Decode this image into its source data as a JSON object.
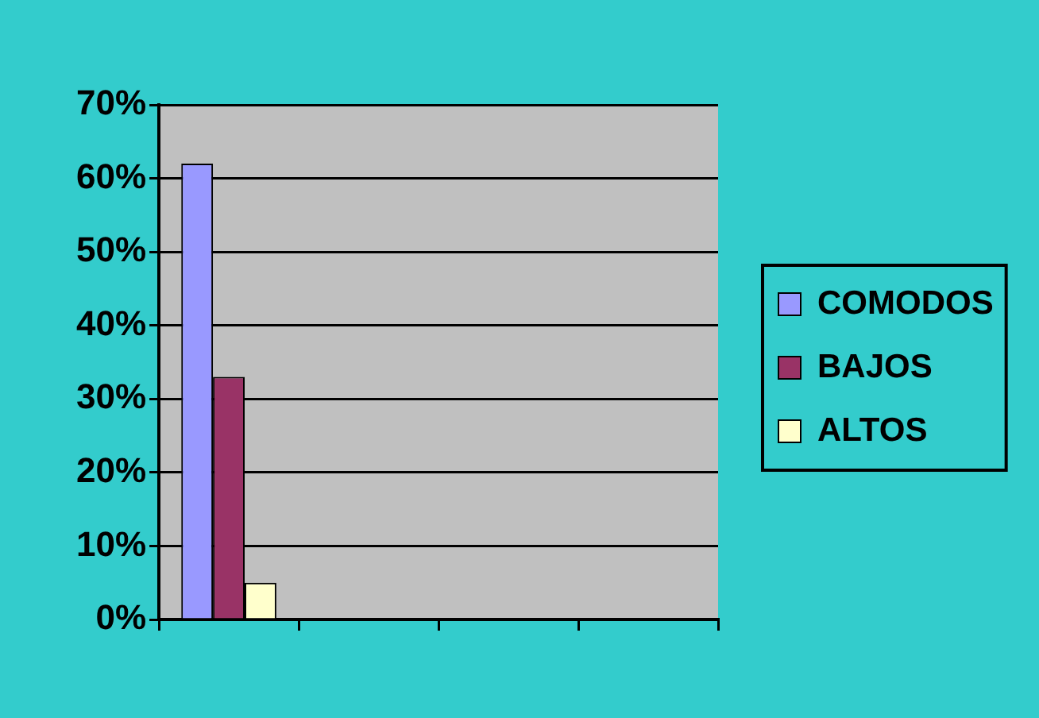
{
  "chart_data": {
    "type": "bar",
    "categories": [
      null,
      null,
      null,
      null
    ],
    "series": [
      {
        "name": "COMODOS",
        "color": "#9999ff",
        "values": [
          62,
          null,
          null,
          null
        ]
      },
      {
        "name": "BAJOS",
        "color": "#993366",
        "values": [
          33,
          null,
          null,
          null
        ]
      },
      {
        "name": "ALTOS",
        "color": "#ffffcc",
        "values": [
          5,
          null,
          null,
          null
        ]
      }
    ],
    "ylim": [
      0,
      70
    ],
    "yticks": [
      {
        "value": 0,
        "label": "0%"
      },
      {
        "value": 10,
        "label": "10%"
      },
      {
        "value": 20,
        "label": "20%"
      },
      {
        "value": 30,
        "label": "30%"
      },
      {
        "value": 40,
        "label": "40%"
      },
      {
        "value": 50,
        "label": "50%"
      },
      {
        "value": 60,
        "label": "60%"
      },
      {
        "value": 70,
        "label": "70%"
      }
    ],
    "grid": "y",
    "legend": "right",
    "tick_labels": "y"
  }
}
